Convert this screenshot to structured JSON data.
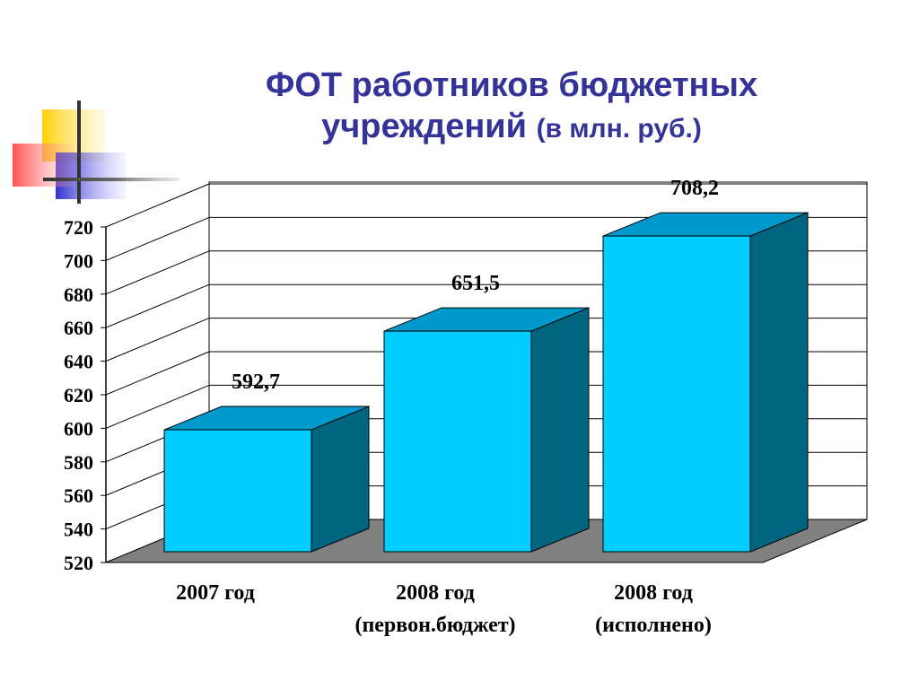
{
  "title": {
    "line1": "ФОТ работников бюджетных",
    "line2_main": "учреждений",
    "line2_unit": "(в млн. руб.)"
  },
  "chart_data": {
    "type": "bar",
    "title": "ФОТ работников бюджетных учреждений (в млн. руб.)",
    "categories": [
      [
        "2007 год"
      ],
      [
        "2008 год",
        "(первон.бюджет)"
      ],
      [
        "2008 год",
        "(исполнено)"
      ]
    ],
    "values": [
      592.7,
      651.5,
      708.2
    ],
    "value_labels": [
      "592,7",
      "651,5",
      "708,2"
    ],
    "y_ticks": [
      520,
      540,
      560,
      580,
      600,
      620,
      640,
      660,
      680,
      700,
      720
    ],
    "ylim": [
      520,
      720
    ],
    "grid": true,
    "three_d": true,
    "colors": {
      "bar_front": "#00CCFF",
      "bar_top": "#0099CC",
      "bar_side": "#006680",
      "floor": "#808080"
    }
  }
}
